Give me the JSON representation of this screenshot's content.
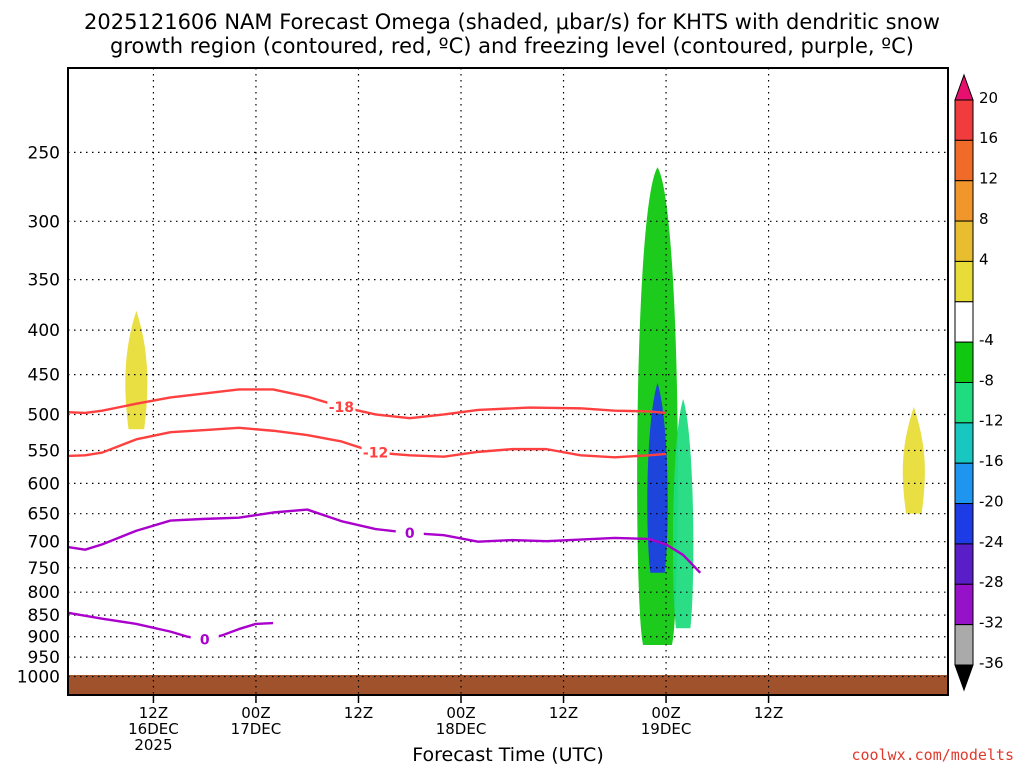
{
  "title": {
    "line1": "2025121606 NAM Forecast Omega (shaded, μbar/s) for KHTS with dendritic snow",
    "line2": "growth region (contoured, red, ºC) and freezing level (contoured, purple, ºC)"
  },
  "credit": "coolwx.com/modelts",
  "chart_data": {
    "type": "heatmap",
    "xlabel": "Forecast Time (UTC)",
    "ylabel": "",
    "x_range_hours": [
      -4,
      99
    ],
    "y_range_hpa": [
      1050,
      200
    ],
    "y_ticks": [
      "250",
      "300",
      "350",
      "400",
      "450",
      "500",
      "550",
      "600",
      "650",
      "700",
      "750",
      "800",
      "850",
      "900",
      "950",
      "1000"
    ],
    "x_ticks": [
      {
        "hour": 6,
        "l1": "12Z",
        "l2": "16DEC",
        "l3": "2025"
      },
      {
        "hour": 18,
        "l1": "00Z",
        "l2": "17DEC",
        "l3": ""
      },
      {
        "hour": 30,
        "l1": "12Z",
        "l2": "",
        "l3": ""
      },
      {
        "hour": 42,
        "l1": "00Z",
        "l2": "18DEC",
        "l3": ""
      },
      {
        "hour": 54,
        "l1": "12Z",
        "l2": "",
        "l3": ""
      },
      {
        "hour": 66,
        "l1": "00Z",
        "l2": "19DEC",
        "l3": ""
      },
      {
        "hour": 78,
        "l1": "12Z",
        "l2": "",
        "l3": ""
      }
    ],
    "colorbar": {
      "labels": [
        "20",
        "16",
        "12",
        "8",
        "4",
        "-4",
        "-8",
        "-12",
        "-16",
        "-20",
        "-24",
        "-28",
        "-32",
        "-36"
      ],
      "colors": [
        "#e8106e",
        "#f03c3c",
        "#f06a28",
        "#f0962a",
        "#e8be30",
        "#e8dc38",
        "#ffffff",
        "#10c810",
        "#20dc80",
        "#18c8c0",
        "#1e96f0",
        "#1e3ce6",
        "#5a1ec8",
        "#9612c8",
        "#aaaaaa",
        "#000000"
      ]
    },
    "contours": [
      {
        "label": "-18",
        "color": "#ff4040",
        "points": [
          [
            -4,
            497
          ],
          [
            -2,
            498
          ],
          [
            0,
            495
          ],
          [
            4,
            486
          ],
          [
            8,
            478
          ],
          [
            12,
            473
          ],
          [
            16,
            468
          ],
          [
            20,
            468
          ],
          [
            24,
            477
          ],
          [
            28,
            490
          ],
          [
            32,
            500
          ],
          [
            36,
            505
          ],
          [
            40,
            500
          ],
          [
            44,
            494
          ],
          [
            50,
            491
          ],
          [
            56,
            492
          ],
          [
            60,
            495
          ],
          [
            64,
            496
          ],
          [
            66,
            498
          ]
        ]
      },
      {
        "label": "-12",
        "color": "#ff4040",
        "points": [
          [
            -4,
            558
          ],
          [
            -2,
            557
          ],
          [
            0,
            553
          ],
          [
            4,
            534
          ],
          [
            8,
            524
          ],
          [
            12,
            521
          ],
          [
            16,
            518
          ],
          [
            20,
            522
          ],
          [
            24,
            528
          ],
          [
            28,
            537
          ],
          [
            32,
            553
          ],
          [
            36,
            557
          ],
          [
            40,
            559
          ],
          [
            44,
            552
          ],
          [
            48,
            548
          ],
          [
            52,
            548
          ],
          [
            56,
            557
          ],
          [
            60,
            560
          ],
          [
            64,
            557
          ],
          [
            66,
            555
          ]
        ]
      },
      {
        "label": "0",
        "color": "#aa00cc",
        "points": [
          [
            -4,
            710
          ],
          [
            -2,
            715
          ],
          [
            0,
            705
          ],
          [
            4,
            680
          ],
          [
            8,
            662
          ],
          [
            12,
            659
          ],
          [
            16,
            657
          ],
          [
            20,
            648
          ],
          [
            24,
            643
          ],
          [
            28,
            663
          ],
          [
            32,
            677
          ],
          [
            36,
            684
          ],
          [
            40,
            688
          ],
          [
            44,
            700
          ],
          [
            48,
            697
          ],
          [
            52,
            699
          ],
          [
            56,
            696
          ],
          [
            60,
            693
          ],
          [
            64,
            695
          ],
          [
            66,
            705
          ],
          [
            68,
            725
          ],
          [
            70,
            760
          ]
        ]
      },
      {
        "label": "0",
        "color": "#aa00cc",
        "points": [
          [
            -4,
            845
          ],
          [
            0,
            858
          ],
          [
            4,
            870
          ],
          [
            8,
            888
          ],
          [
            10,
            900
          ],
          [
            12,
            907
          ],
          [
            14,
            897
          ],
          [
            16,
            882
          ],
          [
            18,
            870
          ],
          [
            20,
            868
          ]
        ]
      }
    ],
    "shaded_regions": [
      {
        "omega": -8,
        "hour_center": 65,
        "p_top": 260,
        "p_bottom": 920
      },
      {
        "omega": -24,
        "hour_center": 65,
        "p_top": 460,
        "p_bottom": 760
      },
      {
        "omega": -12,
        "hour_center": 68,
        "p_top": 480,
        "p_bottom": 880
      },
      {
        "omega": 8,
        "hour_center": 4,
        "p_top": 380,
        "p_bottom": 520
      },
      {
        "omega": 8,
        "hour_center": 95,
        "p_top": 490,
        "p_bottom": 650
      }
    ]
  }
}
